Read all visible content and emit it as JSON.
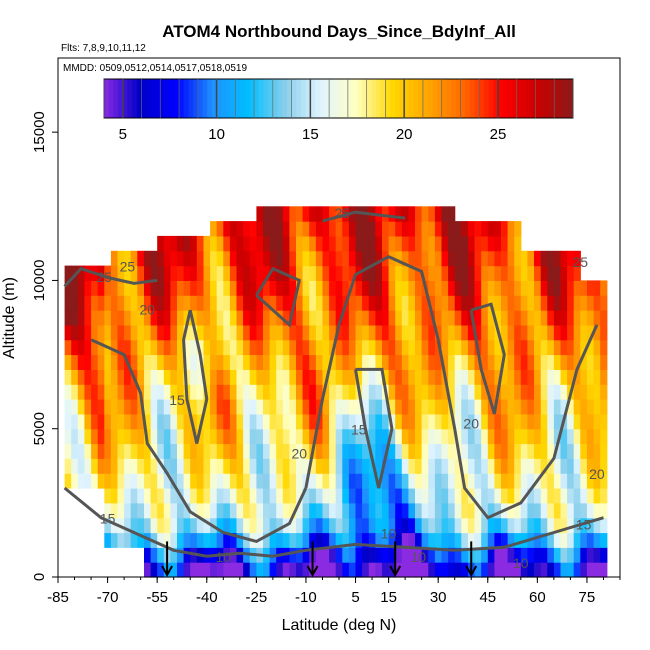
{
  "chart_data": {
    "type": "heatmap",
    "title": "ATOM4 Northbound Days_Since_BdyInf_All",
    "flights_label": "Flts: 7,8,9,10,11,12",
    "dates_label": "MMDD: 0509,0512,0514,0517,0518,0519",
    "xlabel": "Latitude (deg N)",
    "ylabel": "Altitude (m)",
    "xlim": [
      -85,
      85
    ],
    "ylim": [
      0,
      17500
    ],
    "x_ticks": [
      -85,
      -70,
      -55,
      -40,
      -25,
      -10,
      5,
      15,
      30,
      45,
      60,
      75
    ],
    "y_ticks": [
      0,
      5000,
      10000,
      15000
    ],
    "colorbar": {
      "range": [
        4,
        29
      ],
      "ticks": [
        5,
        10,
        15,
        20,
        25
      ],
      "colors": [
        "#8a2be2",
        "#0000c8",
        "#0000ff",
        "#1e90ff",
        "#00bfff",
        "#87ceeb",
        "#e0f4ff",
        "#ffffc0",
        "#ffd700",
        "#ffa500",
        "#ff6600",
        "#ff0000",
        "#cc0000",
        "#8b1a1a"
      ]
    },
    "contours": {
      "levels": [
        10,
        15,
        20,
        25
      ],
      "labels": [
        {
          "text": "25",
          "x": -71,
          "y": 9950
        },
        {
          "text": "25",
          "x": -64,
          "y": 10300
        },
        {
          "text": "25",
          "x": 1,
          "y": 12100
        },
        {
          "text": "25",
          "x": 73,
          "y": 10450
        },
        {
          "text": "20",
          "x": -58,
          "y": 8850
        },
        {
          "text": "20",
          "x": -12,
          "y": 4000
        },
        {
          "text": "20",
          "x": 40,
          "y": 5000
        },
        {
          "text": "20",
          "x": 78,
          "y": 3300
        },
        {
          "text": "15",
          "x": -49,
          "y": 5800
        },
        {
          "text": "15",
          "x": 6,
          "y": 4800
        },
        {
          "text": "15",
          "x": -70,
          "y": 1800
        },
        {
          "text": "15",
          "x": 74,
          "y": 1600
        },
        {
          "text": "10",
          "x": -35,
          "y": 500
        },
        {
          "text": "10",
          "x": 15,
          "y": 1300
        },
        {
          "text": "10",
          "x": 24,
          "y": 500
        },
        {
          "text": "10",
          "x": 55,
          "y": 300
        }
      ]
    },
    "profile_markers_lat": [
      -52,
      -8,
      17,
      40
    ],
    "field": {
      "lat_range": [
        -83,
        81
      ],
      "alt_range": [
        500,
        12500
      ],
      "cell_lat": 2,
      "cell_alt": 500
    }
  }
}
